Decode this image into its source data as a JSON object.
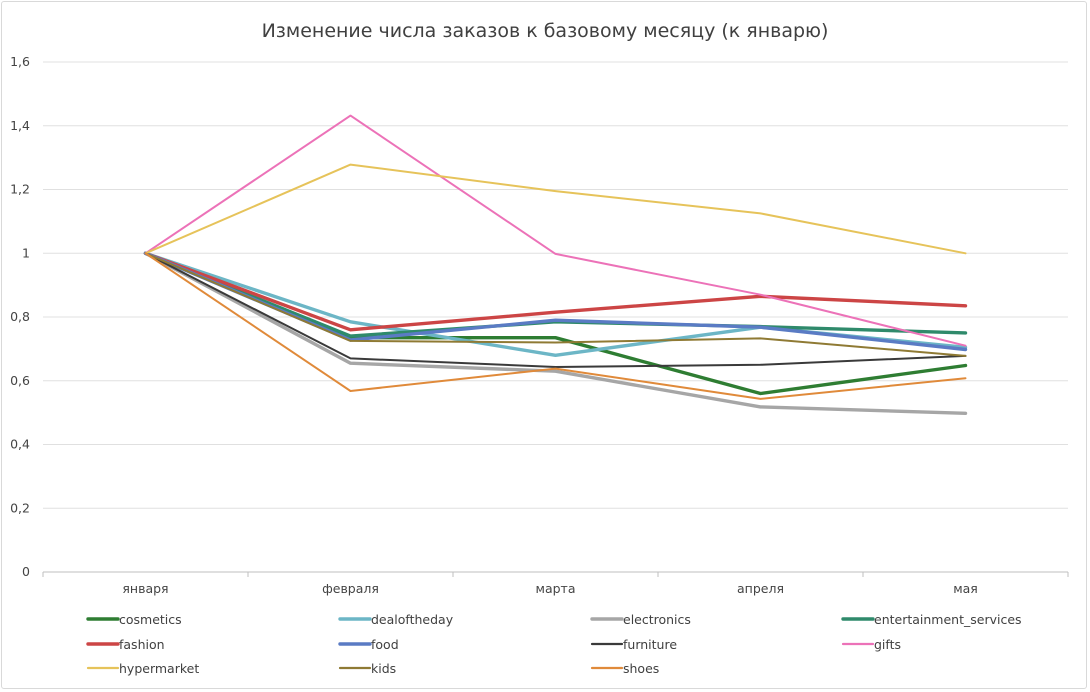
{
  "chart_data": {
    "type": "line",
    "title": "Изменение числа заказов к базовому месяцу (к январю)",
    "xlabel": "",
    "ylabel": "",
    "categories": [
      "января",
      "февраля",
      "марта",
      "апреля",
      "мая"
    ],
    "ylim": [
      0,
      1.6
    ],
    "yticks": [
      "0",
      "0,2",
      "0,4",
      "0,6",
      "0,8",
      "1",
      "1,2",
      "1,4",
      "1,6"
    ],
    "ytick_values": [
      0,
      0.2,
      0.4,
      0.6,
      0.8,
      1.0,
      1.2,
      1.4,
      1.6
    ],
    "grid": true,
    "legend_position": "bottom",
    "series": [
      {
        "name": "cosmetics",
        "color": "#2e7d32",
        "weight": "bold",
        "values": [
          1.0,
          0.735,
          0.735,
          0.56,
          0.648
        ]
      },
      {
        "name": "dealoftheday",
        "color": "#6cb6c6",
        "weight": "bold",
        "values": [
          1.0,
          0.785,
          0.68,
          0.768,
          0.705
        ]
      },
      {
        "name": "electronics",
        "color": "#a6a6a6",
        "weight": "bold",
        "values": [
          1.0,
          0.655,
          0.63,
          0.518,
          0.498
        ]
      },
      {
        "name": "entertainment_services",
        "color": "#2f8a6b",
        "weight": "bold",
        "values": [
          1.0,
          0.74,
          0.785,
          0.77,
          0.75
        ]
      },
      {
        "name": "fashion",
        "color": "#cc4545",
        "weight": "bold",
        "values": [
          1.0,
          0.76,
          0.815,
          0.865,
          0.835
        ]
      },
      {
        "name": "food",
        "color": "#5a7bc4",
        "weight": "bold",
        "values": [
          1.0,
          0.728,
          0.79,
          0.768,
          0.698
        ]
      },
      {
        "name": "furniture",
        "color": "#3a3a3a",
        "weight": "normal",
        "values": [
          1.0,
          0.67,
          0.643,
          0.65,
          0.678
        ]
      },
      {
        "name": "gifts",
        "color": "#ec72b8",
        "weight": "normal",
        "values": [
          1.0,
          1.432,
          0.998,
          0.87,
          0.71
        ]
      },
      {
        "name": "hypermarket",
        "color": "#e6c35a",
        "weight": "normal",
        "values": [
          1.0,
          1.278,
          1.195,
          1.125,
          1.0
        ]
      },
      {
        "name": "kids",
        "color": "#8f7a34",
        "weight": "normal",
        "values": [
          1.0,
          0.725,
          0.72,
          0.733,
          0.678
        ]
      },
      {
        "name": "shoes",
        "color": "#e08a3a",
        "weight": "normal",
        "values": [
          1.0,
          0.568,
          0.638,
          0.543,
          0.608
        ]
      }
    ]
  }
}
